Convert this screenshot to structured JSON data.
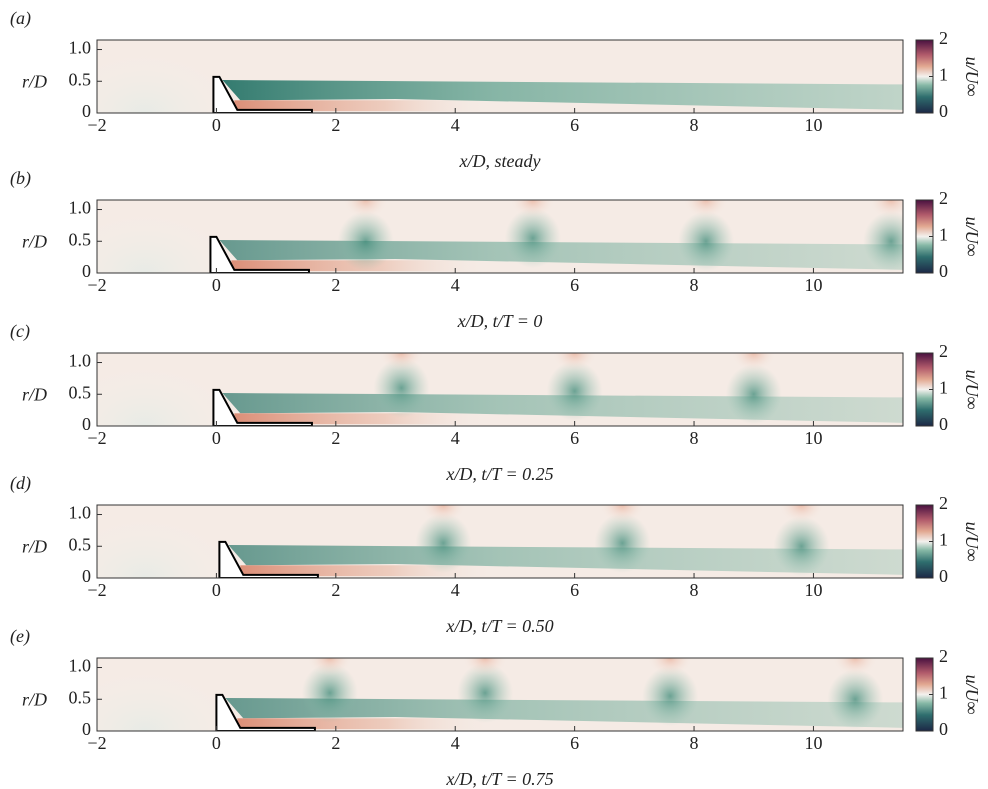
{
  "chart_data": [
    {
      "type": "contour",
      "panel_label": "(a)",
      "xlabel": "x/D, steady",
      "ylabel": "r/D",
      "xlim": [
        -2,
        11.5
      ],
      "ylim": [
        0,
        1.15
      ],
      "xticks": [
        {
          "value": -2,
          "label": "−2"
        },
        0,
        2,
        4,
        6,
        8,
        10
      ],
      "yticks": [
        0,
        0.5,
        {
          "value": 1,
          "label": "1.0"
        }
      ],
      "clim": [
        0,
        2
      ],
      "cticks": [
        0,
        1,
        2
      ],
      "clabel": "u/U∞"
    },
    {
      "type": "contour",
      "panel_label": "(b)",
      "xlabel": "x/D, t/T = 0",
      "ylabel": "r/D",
      "xlim": [
        -2,
        11.5
      ],
      "ylim": [
        0,
        1.15
      ],
      "xticks": [
        {
          "value": -2,
          "label": "−2"
        },
        0,
        2,
        4,
        6,
        8,
        10
      ],
      "yticks": [
        0,
        0.5,
        {
          "value": 1,
          "label": "1.0"
        }
      ],
      "clim": [
        0,
        2
      ],
      "cticks": [
        0,
        1,
        2
      ],
      "clabel": "u/U∞"
    },
    {
      "type": "contour",
      "panel_label": "(c)",
      "xlabel": "x/D, t/T = 0.25",
      "ylabel": "r/D",
      "xlim": [
        -2,
        11.5
      ],
      "ylim": [
        0,
        1.15
      ],
      "xticks": [
        {
          "value": -2,
          "label": "−2"
        },
        0,
        2,
        4,
        6,
        8,
        10
      ],
      "yticks": [
        0,
        0.5,
        {
          "value": 1,
          "label": "1.0"
        }
      ],
      "clim": [
        0,
        2
      ],
      "cticks": [
        0,
        1,
        2
      ],
      "clabel": "u/U∞"
    },
    {
      "type": "contour",
      "panel_label": "(d)",
      "xlabel": "x/D, t/T = 0.50",
      "ylabel": "r/D",
      "xlim": [
        -2,
        11.5
      ],
      "ylim": [
        0,
        1.15
      ],
      "xticks": [
        {
          "value": -2,
          "label": "−2"
        },
        0,
        2,
        4,
        6,
        8,
        10
      ],
      "yticks": [
        0,
        0.5,
        {
          "value": 1,
          "label": "1.0"
        }
      ],
      "clim": [
        0,
        2
      ],
      "cticks": [
        0,
        1,
        2
      ],
      "clabel": "u/U∞"
    },
    {
      "type": "contour",
      "panel_label": "(e)",
      "xlabel": "x/D, t/T = 0.75",
      "ylabel": "r/D",
      "xlim": [
        -2,
        11.5
      ],
      "ylim": [
        0,
        1.15
      ],
      "xticks": [
        {
          "value": -2,
          "label": "−2"
        },
        0,
        2,
        4,
        6,
        8,
        10
      ],
      "yticks": [
        0,
        0.5,
        {
          "value": 1,
          "label": "1.0"
        }
      ],
      "clim": [
        0,
        2
      ],
      "cticks": [
        0,
        1,
        2
      ],
      "clabel": "u/U∞"
    }
  ]
}
